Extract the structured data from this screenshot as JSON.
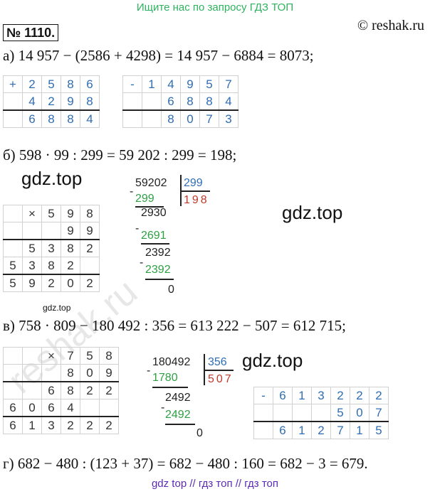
{
  "banner": "Ищите нас по запросу ГДЗ ТОП",
  "badge": "№ 1110.",
  "copyright": "© reshak.ru",
  "eq_a": "а) 14 957 − (2586 + 4298) = 14 957 − 6884 = 8073;",
  "eq_b": "б) 598 · 99 : 299 = 59 202 : 299 = 198;",
  "eq_v": "в) 758 · 809 − 180 492 : 356 = 613 222 − 507 = 612 715;",
  "eq_g": "г) 682 − 480 : (123 + 37) = 682 − 480 : 160 = 682 − 3 = 679.",
  "watermark": "gdz.top",
  "footer": "gdz top  //  гдз топ  //  гдз топ",
  "reshak_watermark": "reshak.ru",
  "add_table": {
    "sign": "+",
    "rows": [
      [
        "2",
        "5",
        "8",
        "6"
      ],
      [
        "4",
        "2",
        "9",
        "8"
      ],
      [
        "6",
        "8",
        "8",
        "4"
      ]
    ]
  },
  "sub_table": {
    "sign": "-",
    "rows": [
      [
        "1",
        "4",
        "9",
        "5",
        "7"
      ],
      [
        "",
        "6",
        "8",
        "8",
        "4"
      ],
      [
        "",
        "8",
        "0",
        "7",
        "3"
      ]
    ]
  },
  "mul_b": {
    "sign": "×",
    "rows": [
      [
        "",
        "",
        "5",
        "9",
        "8"
      ],
      [
        "",
        "",
        "",
        "9",
        "9"
      ],
      [
        "",
        "5",
        "3",
        "8",
        "2"
      ],
      [
        "5",
        "3",
        "8",
        "2",
        ""
      ],
      [
        "5",
        "9",
        "2",
        "0",
        "2"
      ]
    ]
  },
  "div_b": {
    "dividend": "59202",
    "divisor": "299",
    "quotient": "198",
    "steps": [
      "299",
      "2930",
      "2691",
      "2392",
      "2392",
      "0"
    ]
  },
  "mul_v": {
    "sign": "×",
    "rows": [
      [
        "",
        "",
        "7",
        "5",
        "8"
      ],
      [
        "",
        "",
        "8",
        "0",
        "9"
      ],
      [
        "",
        "6",
        "8",
        "2",
        "2"
      ],
      [
        "6",
        "0",
        "6",
        "4",
        ""
      ],
      [
        "6",
        "1",
        "3",
        "2",
        "2",
        "2"
      ]
    ]
  },
  "div_v": {
    "dividend": "180492",
    "divisor": "356",
    "quotient": "507",
    "steps": [
      "1780",
      "2492",
      "2492",
      "0"
    ]
  },
  "sub_v": {
    "sign": "-",
    "rows": [
      [
        "6",
        "1",
        "3",
        "2",
        "2",
        "2"
      ],
      [
        "",
        "",
        "",
        "5",
        "0",
        "7"
      ],
      [
        "6",
        "1",
        "2",
        "7",
        "1",
        "5"
      ]
    ]
  }
}
